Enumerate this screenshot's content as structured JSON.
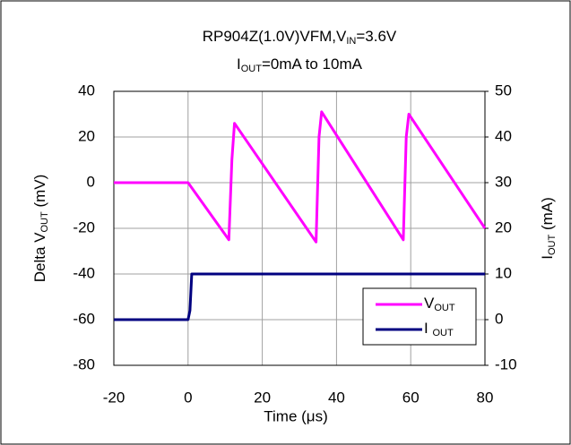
{
  "chart_data": {
    "type": "line",
    "title": [
      [
        "RP904Z(1.0V)VFM,V",
        "IN",
        "=3.6V"
      ],
      [
        "I",
        "OUT",
        "=0mA to 10mA"
      ]
    ],
    "xlabel": "Time (μs)",
    "ylabel": [
      "Delta V",
      "OUT",
      " (mV)"
    ],
    "y2label": [
      "I",
      "OUT",
      " (mA)"
    ],
    "xlim": [
      -20,
      80
    ],
    "xticks": [
      -20,
      0,
      20,
      40,
      60,
      80
    ],
    "ylim": [
      -80,
      40
    ],
    "yticks": [
      -80,
      -60,
      -40,
      -20,
      0,
      20,
      40
    ],
    "y2lim": [
      -10,
      50
    ],
    "y2ticks": [
      -10,
      0,
      10,
      20,
      30,
      40,
      50
    ],
    "grid": true,
    "legend": "lower right",
    "series": [
      {
        "name": [
          "V",
          "OUT"
        ],
        "color": "#ff00ff",
        "x": [
          -20,
          -10,
          0,
          11,
          11.8,
          12.5,
          34.5,
          35.3,
          36,
          58,
          58.8,
          59.5,
          80
        ],
        "values": [
          0,
          0,
          0,
          -25,
          10,
          26,
          -26,
          20,
          31,
          -25,
          20,
          30,
          -20
        ]
      },
      {
        "name": [
          "I ",
          "OUT"
        ],
        "color": "#000080",
        "axis": "y2",
        "x": [
          -20,
          0,
          0.5,
          1,
          80
        ],
        "values": [
          0,
          0,
          2,
          10,
          10
        ]
      }
    ]
  }
}
